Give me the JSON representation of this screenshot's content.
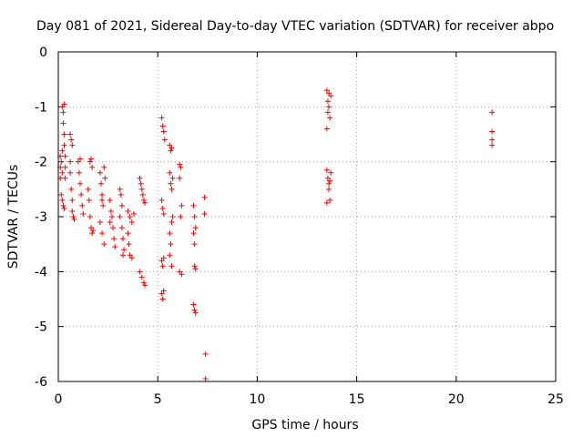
{
  "chart_data": {
    "type": "scatter",
    "title": "Day 081 of 2021, Sidereal Day-to-day VTEC variation (SDTVAR) for receiver abpo",
    "xlabel": "GPS time / hours",
    "ylabel": "SDTVAR / TECUs",
    "xlim": [
      0,
      25
    ],
    "ylim": [
      -6,
      0
    ],
    "xticks": [
      0,
      5,
      10,
      15,
      20,
      25
    ],
    "yticks": [
      0,
      -1,
      -2,
      -3,
      -4,
      -5,
      -6
    ],
    "xtick_labels": [
      "0",
      "5",
      "10",
      "15",
      "20",
      "25"
    ],
    "ytick_labels": [
      "0",
      "-1",
      "-2",
      "-3",
      "-4",
      "-5",
      "-6"
    ],
    "grid": true,
    "marker": "+",
    "color": "#ff0000",
    "series": [
      {
        "name": "SDTVAR",
        "points": [
          [
            0.1,
            -1.9
          ],
          [
            0.1,
            -2.1
          ],
          [
            0.1,
            -2.3
          ],
          [
            0.15,
            -2.0
          ],
          [
            0.2,
            -1.8
          ],
          [
            0.2,
            -2.2
          ],
          [
            0.15,
            -2.6
          ],
          [
            0.2,
            -2.7
          ],
          [
            0.25,
            -2.8
          ],
          [
            0.2,
            -1.0
          ],
          [
            0.25,
            -1.1
          ],
          [
            0.25,
            -1.3
          ],
          [
            0.3,
            -1.5
          ],
          [
            0.3,
            -0.95
          ],
          [
            0.3,
            -1.7
          ],
          [
            0.35,
            -1.9
          ],
          [
            0.35,
            -2.1
          ],
          [
            0.35,
            -2.3
          ],
          [
            0.3,
            -2.85
          ],
          [
            0.6,
            -1.5
          ],
          [
            0.65,
            -1.6
          ],
          [
            0.7,
            -1.7
          ],
          [
            0.6,
            -2.2
          ],
          [
            0.65,
            -2.5
          ],
          [
            0.7,
            -2.7
          ],
          [
            0.7,
            -2.9
          ],
          [
            0.75,
            -3.0
          ],
          [
            0.8,
            -3.05
          ],
          [
            0.6,
            -2.0
          ],
          [
            1.0,
            -2.0
          ],
          [
            1.05,
            -2.2
          ],
          [
            1.1,
            -2.4
          ],
          [
            1.15,
            -2.6
          ],
          [
            1.2,
            -2.8
          ],
          [
            1.25,
            -2.95
          ],
          [
            1.1,
            -1.95
          ],
          [
            1.6,
            -2.0
          ],
          [
            1.65,
            -1.95
          ],
          [
            1.7,
            -2.1
          ],
          [
            1.5,
            -2.5
          ],
          [
            1.55,
            -2.7
          ],
          [
            1.6,
            -3.0
          ],
          [
            1.65,
            -3.2
          ],
          [
            1.7,
            -3.3
          ],
          [
            1.75,
            -3.25
          ],
          [
            2.1,
            -2.2
          ],
          [
            2.15,
            -2.4
          ],
          [
            2.2,
            -2.6
          ],
          [
            2.25,
            -2.8
          ],
          [
            2.3,
            -2.1
          ],
          [
            2.35,
            -2.3
          ],
          [
            2.1,
            -3.1
          ],
          [
            2.2,
            -3.3
          ],
          [
            2.3,
            -3.5
          ],
          [
            2.2,
            -2.7
          ],
          [
            2.6,
            -2.7
          ],
          [
            2.65,
            -2.9
          ],
          [
            2.7,
            -3.0
          ],
          [
            2.75,
            -3.2
          ],
          [
            2.8,
            -3.4
          ],
          [
            2.85,
            -3.55
          ],
          [
            2.6,
            -3.1
          ],
          [
            3.1,
            -2.5
          ],
          [
            3.15,
            -2.6
          ],
          [
            3.2,
            -2.8
          ],
          [
            3.1,
            -3.0
          ],
          [
            3.2,
            -3.2
          ],
          [
            3.25,
            -3.4
          ],
          [
            3.3,
            -3.6
          ],
          [
            3.25,
            -3.7
          ],
          [
            3.5,
            -2.9
          ],
          [
            3.6,
            -3.0
          ],
          [
            3.7,
            -3.1
          ],
          [
            3.5,
            -3.3
          ],
          [
            3.55,
            -3.5
          ],
          [
            3.6,
            -3.7
          ],
          [
            3.7,
            -3.75
          ],
          [
            3.8,
            -2.95
          ],
          [
            4.1,
            -2.3
          ],
          [
            4.15,
            -2.4
          ],
          [
            4.2,
            -2.5
          ],
          [
            4.25,
            -2.6
          ],
          [
            4.3,
            -2.7
          ],
          [
            4.35,
            -2.75
          ],
          [
            4.1,
            -4.0
          ],
          [
            4.2,
            -4.1
          ],
          [
            4.3,
            -4.2
          ],
          [
            4.35,
            -4.25
          ],
          [
            5.2,
            -1.2
          ],
          [
            5.25,
            -1.35
          ],
          [
            5.3,
            -1.45
          ],
          [
            5.35,
            -1.6
          ],
          [
            5.2,
            -2.7
          ],
          [
            5.25,
            -2.85
          ],
          [
            5.3,
            -2.95
          ],
          [
            5.2,
            -3.8
          ],
          [
            5.25,
            -3.9
          ],
          [
            5.3,
            -3.75
          ],
          [
            5.2,
            -4.4
          ],
          [
            5.25,
            -4.5
          ],
          [
            5.3,
            -4.35
          ],
          [
            5.6,
            -1.7
          ],
          [
            5.65,
            -1.8
          ],
          [
            5.7,
            -1.75
          ],
          [
            5.6,
            -2.2
          ],
          [
            5.65,
            -2.4
          ],
          [
            5.7,
            -2.5
          ],
          [
            5.75,
            -2.3
          ],
          [
            5.6,
            -3.3
          ],
          [
            5.65,
            -3.5
          ],
          [
            5.7,
            -3.1
          ],
          [
            5.6,
            -3.7
          ],
          [
            5.7,
            -3.9
          ],
          [
            5.75,
            -3.0
          ],
          [
            6.1,
            -2.05
          ],
          [
            6.15,
            -2.1
          ],
          [
            6.1,
            -2.3
          ],
          [
            6.2,
            -2.8
          ],
          [
            6.15,
            -3.0
          ],
          [
            6.1,
            -4.0
          ],
          [
            6.2,
            -4.05
          ],
          [
            6.8,
            -2.8
          ],
          [
            6.85,
            -3.0
          ],
          [
            6.9,
            -3.2
          ],
          [
            6.85,
            -3.5
          ],
          [
            6.8,
            -3.3
          ],
          [
            6.85,
            -3.9
          ],
          [
            6.9,
            -3.95
          ],
          [
            6.8,
            -4.6
          ],
          [
            6.85,
            -4.7
          ],
          [
            6.9,
            -4.75
          ],
          [
            7.35,
            -2.65
          ],
          [
            7.35,
            -2.95
          ],
          [
            7.4,
            -5.5
          ],
          [
            7.4,
            -5.95
          ],
          [
            13.5,
            -0.7
          ],
          [
            13.55,
            -0.9
          ],
          [
            13.6,
            -1.0
          ],
          [
            13.65,
            -1.2
          ],
          [
            13.7,
            -0.8
          ],
          [
            13.5,
            -1.4
          ],
          [
            13.55,
            -1.1
          ],
          [
            13.6,
            -0.75
          ],
          [
            13.5,
            -2.15
          ],
          [
            13.55,
            -2.3
          ],
          [
            13.6,
            -2.5
          ],
          [
            13.65,
            -2.7
          ],
          [
            13.7,
            -2.2
          ],
          [
            13.5,
            -2.75
          ],
          [
            13.6,
            -2.4
          ],
          [
            13.65,
            -2.35
          ],
          [
            21.8,
            -1.1
          ],
          [
            21.8,
            -1.45
          ],
          [
            21.8,
            -1.6
          ],
          [
            21.8,
            -1.7
          ]
        ]
      }
    ]
  }
}
